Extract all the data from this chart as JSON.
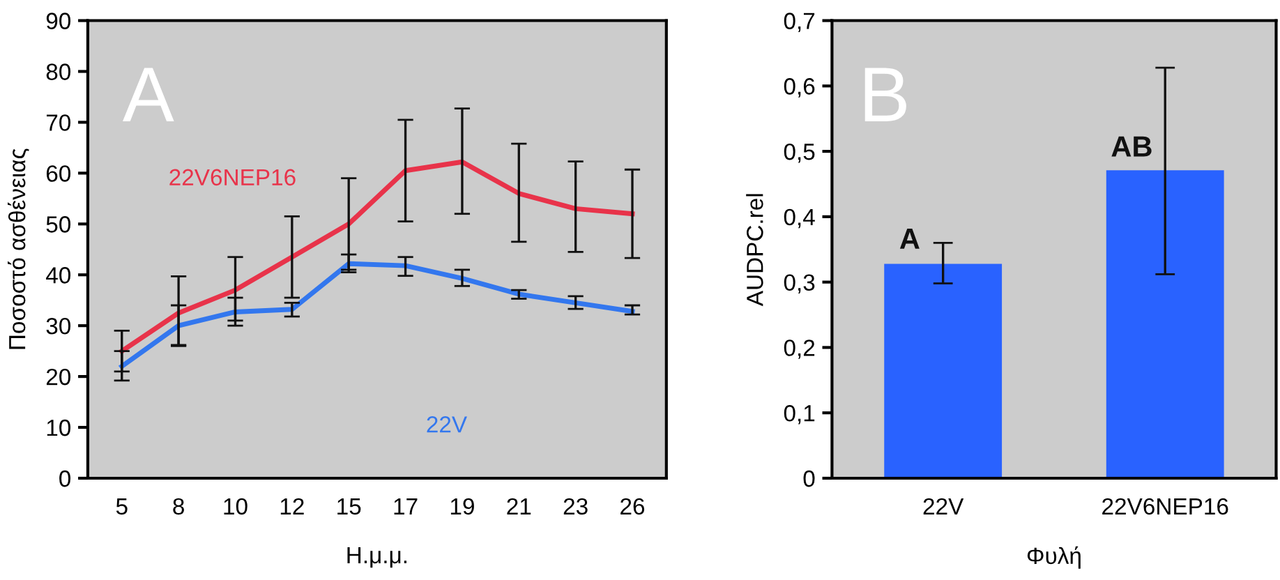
{
  "chart_data": [
    {
      "type": "line",
      "xlabel": "Η.μ.μ.",
      "ylabel": "Ποσοστό ασθένειας",
      "categories": [
        "5",
        "8",
        "10",
        "12",
        "15",
        "17",
        "19",
        "21",
        "23",
        "26"
      ],
      "ylim": [
        0,
        90
      ],
      "yticks": [
        0,
        10,
        20,
        30,
        40,
        50,
        60,
        70,
        80,
        90
      ],
      "grid": false,
      "legend": false,
      "marker": "none",
      "line_style": "solid",
      "annotations": [
        "A"
      ],
      "series": [
        {
          "name": "22V6NEP16",
          "color": "#e8334a",
          "values": [
            25,
            32.5,
            37,
            43.5,
            50,
            60.5,
            62.2,
            56,
            53,
            52
          ],
          "errors": [
            [
              21,
              29
            ],
            [
              26,
              39.7
            ],
            [
              31,
              43.5
            ],
            [
              35.5,
              51.5
            ],
            [
              41,
              59
            ],
            [
              50.5,
              70.5
            ],
            [
              52,
              72.7
            ],
            [
              46.5,
              65.8
            ],
            [
              44.5,
              62.3
            ],
            [
              43.3,
              60.7
            ]
          ]
        },
        {
          "name": "22V",
          "color": "#3377ee",
          "values": [
            22,
            30,
            32.7,
            33.2,
            42.2,
            41.8,
            39.3,
            36.2,
            34.5,
            32.8
          ],
          "errors": [
            [
              19.2,
              25
            ],
            [
              26.2,
              34
            ],
            [
              30,
              35.5
            ],
            [
              31.8,
              34.5
            ],
            [
              40.5,
              44
            ],
            [
              39.8,
              43.5
            ],
            [
              37.8,
              41
            ],
            [
              35.3,
              37
            ],
            [
              33.3,
              35.8
            ],
            [
              32.2,
              34
            ]
          ]
        }
      ]
    },
    {
      "type": "bar",
      "xlabel": "Φυλή",
      "ylabel": "AUDPC.rel",
      "categories": [
        "22V",
        "22V6NEP16"
      ],
      "ylim": [
        0,
        0.7
      ],
      "yticks": [
        0,
        {
          "value": 0.1,
          "label": "0,1"
        },
        {
          "value": 0.2,
          "label": "0,2"
        },
        {
          "value": 0.3,
          "label": "0,3"
        },
        {
          "value": 0.4,
          "label": "0,4"
        },
        {
          "value": 0.5,
          "label": "0,5"
        },
        {
          "value": 0.6,
          "label": "0,6"
        },
        {
          "value": 0.7,
          "label": "0,7"
        }
      ],
      "grid": false,
      "legend": false,
      "color": "#2962ff",
      "values": [
        0.328,
        0.471
      ],
      "errors": [
        [
          0.298,
          0.36
        ],
        [
          0.312,
          0.628
        ]
      ],
      "annotations": [
        "B",
        {
          "text": "A",
          "x": "22V",
          "y": 0.33
        },
        {
          "text": "AB",
          "x": "22V6NEP16",
          "y": 0.471
        }
      ]
    }
  ]
}
